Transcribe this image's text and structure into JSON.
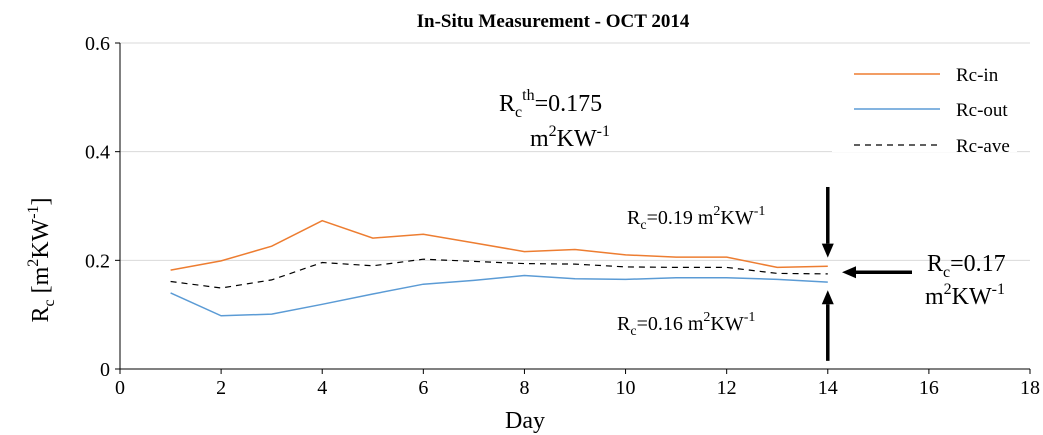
{
  "chart_data": {
    "type": "line",
    "title": "In-Situ Measurement  - OCT 2014",
    "xlabel": "Day",
    "ylabel": {
      "base": "R",
      "sub": "c",
      "open": " [m",
      "sup2": "2",
      "kw": "KW",
      "supneg": "-1",
      "close": "]"
    },
    "xlim": [
      0,
      18
    ],
    "ylim": [
      0,
      0.6
    ],
    "xticks": [
      "0",
      "2",
      "4",
      "6",
      "8",
      "10",
      "12",
      "14",
      "16",
      "18"
    ],
    "yticks": [
      "0",
      "0.2",
      "0.4",
      "0.6"
    ],
    "grid": "horizontal",
    "legend_position": "top-right",
    "x": [
      1,
      2,
      3,
      4,
      5,
      6,
      7,
      8,
      9,
      10,
      11,
      12,
      13,
      14
    ],
    "series": [
      {
        "name": "Rc-in",
        "color": "#ED7D31",
        "dash": "solid",
        "values": [
          0.182,
          0.199,
          0.226,
          0.273,
          0.241,
          0.248,
          0.232,
          0.216,
          0.22,
          0.21,
          0.206,
          0.206,
          0.187,
          0.189
        ]
      },
      {
        "name": "Rc-out",
        "color": "#5B9BD5",
        "dash": "solid",
        "values": [
          0.14,
          0.098,
          0.101,
          0.119,
          0.138,
          0.156,
          0.163,
          0.172,
          0.166,
          0.165,
          0.168,
          0.168,
          0.165,
          0.16
        ]
      },
      {
        "name": "Rc-ave",
        "color": "#000000",
        "dash": "dashed",
        "values": [
          0.161,
          0.149,
          0.164,
          0.196,
          0.19,
          0.202,
          0.198,
          0.194,
          0.193,
          0.188,
          0.187,
          0.187,
          0.176,
          0.175
        ]
      }
    ],
    "annotations": {
      "threshold": {
        "base": "R",
        "sub": "c",
        "sup": "th",
        "value": "=0.175",
        "unit_base": "m",
        "unit_sup2": "2",
        "unit_kw": "KW",
        "unit_supneg": "-1"
      },
      "upper": {
        "base": "R",
        "sub": "c",
        "value": "=0.19 m",
        "sup2": "2",
        "kw": "KW",
        "supneg": "-1",
        "arrow_x": 14,
        "arrow_y_from": 0.335,
        "arrow_y_to": 0.205
      },
      "lower": {
        "base": "R",
        "sub": "c",
        "value": "=0.16 m",
        "sup2": "2",
        "kw": "KW",
        "supneg": "-1",
        "arrow_x": 14,
        "arrow_y_from": 0.015,
        "arrow_y_to": 0.145
      },
      "average": {
        "base": "R",
        "sub": "c",
        "value": "=0.17",
        "unit_base": "m",
        "unit_sup2": "2",
        "unit_kw": "KW",
        "unit_supneg": "-1",
        "arrow_y": 0.178
      }
    }
  }
}
